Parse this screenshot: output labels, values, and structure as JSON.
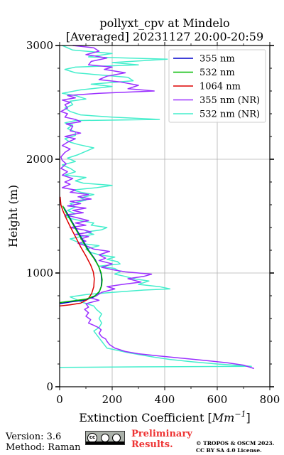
{
  "chart_data": {
    "type": "line",
    "title": "pollyxt_cpv at Mindelo",
    "subtitle": "[Averaged] 20231127 20:00-20:59",
    "xlabel": "Extinction Coefficient [",
    "xlabel_unit": "Mm",
    "xlabel_exp": "−1",
    "xlabel_close": "]",
    "ylabel": "Height (m)",
    "xlim": [
      0,
      800
    ],
    "ylim": [
      0,
      3000
    ],
    "x_ticks": [
      0,
      200,
      400,
      600,
      800
    ],
    "y_ticks": [
      0,
      1000,
      2000,
      3000
    ],
    "x_tick_labels": [
      "0",
      "200",
      "400",
      "600",
      "800"
    ],
    "y_tick_labels": [
      "0",
      "1000",
      "2000",
      "3000"
    ],
    "grid": true,
    "legend_position": "top-right",
    "series": [
      {
        "name": "355 nm",
        "color": "#0000cc",
        "points": [
          [
            0,
            730
          ],
          [
            40,
            745
          ],
          [
            90,
            760
          ],
          [
            130,
            790
          ],
          [
            150,
            830
          ],
          [
            158,
            880
          ],
          [
            160,
            930
          ],
          [
            158,
            990
          ],
          [
            150,
            1050
          ],
          [
            135,
            1120
          ],
          [
            110,
            1200
          ],
          [
            85,
            1300
          ],
          [
            60,
            1400
          ],
          [
            40,
            1480
          ],
          [
            25,
            1540
          ],
          [
            15,
            1580
          ]
        ]
      },
      {
        "name": "532 nm",
        "color": "#00bb00",
        "points": [
          [
            0,
            740
          ],
          [
            50,
            755
          ],
          [
            100,
            770
          ],
          [
            135,
            800
          ],
          [
            152,
            840
          ],
          [
            160,
            890
          ],
          [
            162,
            940
          ],
          [
            158,
            1000
          ],
          [
            148,
            1060
          ],
          [
            130,
            1130
          ],
          [
            105,
            1210
          ],
          [
            80,
            1310
          ],
          [
            55,
            1410
          ],
          [
            35,
            1490
          ],
          [
            20,
            1550
          ],
          [
            12,
            1590
          ]
        ]
      },
      {
        "name": "1064 nm",
        "color": "#dd0000",
        "points": [
          [
            0,
            710
          ],
          [
            40,
            720
          ],
          [
            80,
            735
          ],
          [
            108,
            770
          ],
          [
            122,
            820
          ],
          [
            130,
            880
          ],
          [
            132,
            950
          ],
          [
            128,
            1010
          ],
          [
            118,
            1070
          ],
          [
            100,
            1150
          ],
          [
            80,
            1230
          ],
          [
            60,
            1320
          ],
          [
            42,
            1400
          ],
          [
            25,
            1480
          ],
          [
            12,
            1550
          ],
          [
            5,
            1600
          ],
          [
            2,
            1670
          ]
        ]
      },
      {
        "name": "355 nm (NR)",
        "color": "#9b30ff",
        "points": [
          [
            740,
            160
          ],
          [
            700,
            190
          ],
          [
            640,
            210
          ],
          [
            560,
            230
          ],
          [
            470,
            250
          ],
          [
            380,
            270
          ],
          [
            300,
            290
          ],
          [
            250,
            310
          ],
          [
            210,
            340
          ],
          [
            190,
            370
          ],
          [
            180,
            400
          ],
          [
            175,
            420
          ],
          [
            160,
            440
          ],
          [
            150,
            470
          ],
          [
            158,
            500
          ],
          [
            148,
            520
          ],
          [
            130,
            540
          ],
          [
            110,
            560
          ],
          [
            118,
            590
          ],
          [
            100,
            620
          ],
          [
            110,
            650
          ],
          [
            95,
            680
          ],
          [
            110,
            700
          ],
          [
            100,
            730
          ],
          [
            150,
            760
          ],
          [
            120,
            780
          ],
          [
            140,
            800
          ],
          [
            160,
            830
          ],
          [
            210,
            860
          ],
          [
            180,
            880
          ],
          [
            240,
            900
          ],
          [
            310,
            920
          ],
          [
            260,
            950
          ],
          [
            320,
            970
          ],
          [
            350,
            990
          ],
          [
            250,
            1010
          ],
          [
            200,
            1030
          ],
          [
            160,
            1050
          ],
          [
            200,
            1080
          ],
          [
            150,
            1110
          ],
          [
            175,
            1130
          ],
          [
            150,
            1160
          ],
          [
            190,
            1190
          ],
          [
            130,
            1210
          ],
          [
            100,
            1240
          ],
          [
            70,
            1260
          ],
          [
            100,
            1280
          ],
          [
            80,
            1300
          ],
          [
            110,
            1320
          ],
          [
            60,
            1340
          ],
          [
            120,
            1360
          ],
          [
            90,
            1380
          ],
          [
            40,
            1400
          ],
          [
            100,
            1420
          ],
          [
            60,
            1440
          ],
          [
            110,
            1460
          ],
          [
            60,
            1490
          ],
          [
            20,
            1510
          ],
          [
            90,
            1530
          ],
          [
            50,
            1550
          ],
          [
            100,
            1570
          ],
          [
            30,
            1590
          ],
          [
            80,
            1610
          ],
          [
            40,
            1630
          ],
          [
            120,
            1650
          ],
          [
            70,
            1670
          ],
          [
            110,
            1690
          ],
          [
            40,
            1710
          ],
          [
            60,
            1730
          ],
          [
            10,
            1750
          ],
          [
            40,
            1780
          ],
          [
            20,
            1800
          ],
          [
            50,
            1830
          ],
          [
            10,
            1860
          ],
          [
            30,
            1890
          ],
          [
            5,
            1920
          ],
          [
            25,
            1960
          ],
          [
            10,
            1990
          ],
          [
            5,
            2020
          ],
          [
            20,
            2060
          ],
          [
            40,
            2090
          ],
          [
            10,
            2120
          ],
          [
            30,
            2150
          ],
          [
            60,
            2180
          ],
          [
            20,
            2200
          ],
          [
            80,
            2230
          ],
          [
            40,
            2250
          ],
          [
            50,
            2290
          ],
          [
            25,
            2310
          ],
          [
            80,
            2330
          ],
          [
            60,
            2350
          ],
          [
            20,
            2370
          ],
          [
            30,
            2400
          ],
          [
            5,
            2420
          ],
          [
            30,
            2450
          ],
          [
            20,
            2480
          ],
          [
            40,
            2500
          ],
          [
            10,
            2520
          ],
          [
            60,
            2540
          ],
          [
            30,
            2560
          ],
          [
            150,
            2580
          ],
          [
            360,
            2600
          ],
          [
            260,
            2620
          ],
          [
            300,
            2650
          ],
          [
            230,
            2680
          ],
          [
            150,
            2700
          ],
          [
            180,
            2730
          ],
          [
            250,
            2760
          ],
          [
            170,
            2790
          ],
          [
            200,
            2810
          ],
          [
            110,
            2830
          ],
          [
            120,
            2860
          ],
          [
            180,
            2890
          ],
          [
            100,
            2920
          ],
          [
            150,
            2950
          ],
          [
            130,
            2980
          ],
          [
            50,
            3000
          ]
        ]
      },
      {
        "name": "532 nm (NR)",
        "color": "#44eecc",
        "points": [
          [
            0,
            170
          ],
          [
            300,
            175
          ],
          [
            730,
            180
          ],
          [
            600,
            200
          ],
          [
            500,
            220
          ],
          [
            420,
            240
          ],
          [
            360,
            260
          ],
          [
            310,
            280
          ],
          [
            260,
            300
          ],
          [
            220,
            320
          ],
          [
            180,
            340
          ],
          [
            170,
            370
          ],
          [
            160,
            400
          ],
          [
            150,
            430
          ],
          [
            140,
            460
          ],
          [
            130,
            490
          ],
          [
            150,
            520
          ],
          [
            160,
            560
          ],
          [
            150,
            600
          ],
          [
            160,
            640
          ],
          [
            140,
            680
          ],
          [
            130,
            710
          ],
          [
            90,
            740
          ],
          [
            60,
            770
          ],
          [
            40,
            790
          ],
          [
            100,
            810
          ],
          [
            200,
            830
          ],
          [
            320,
            850
          ],
          [
            420,
            860
          ],
          [
            380,
            880
          ],
          [
            300,
            900
          ],
          [
            340,
            930
          ],
          [
            280,
            950
          ],
          [
            250,
            970
          ],
          [
            210,
            990
          ],
          [
            230,
            1010
          ],
          [
            210,
            1040
          ],
          [
            150,
            1060
          ],
          [
            230,
            1080
          ],
          [
            220,
            1100
          ],
          [
            180,
            1120
          ],
          [
            210,
            1140
          ],
          [
            150,
            1160
          ],
          [
            120,
            1180
          ],
          [
            100,
            1210
          ],
          [
            150,
            1240
          ],
          [
            80,
            1260
          ],
          [
            60,
            1280
          ],
          [
            40,
            1300
          ],
          [
            80,
            1320
          ],
          [
            130,
            1340
          ],
          [
            100,
            1360
          ],
          [
            160,
            1380
          ],
          [
            180,
            1400
          ],
          [
            120,
            1420
          ],
          [
            130,
            1440
          ],
          [
            80,
            1460
          ],
          [
            40,
            1480
          ],
          [
            20,
            1500
          ],
          [
            60,
            1520
          ],
          [
            30,
            1550
          ],
          [
            60,
            1580
          ],
          [
            40,
            1610
          ],
          [
            100,
            1640
          ],
          [
            80,
            1660
          ],
          [
            130,
            1690
          ],
          [
            80,
            1710
          ],
          [
            50,
            1730
          ],
          [
            140,
            1750
          ],
          [
            200,
            1770
          ],
          [
            90,
            1790
          ],
          [
            60,
            1810
          ],
          [
            100,
            1840
          ],
          [
            20,
            1860
          ],
          [
            60,
            1890
          ],
          [
            40,
            1920
          ],
          [
            10,
            1950
          ],
          [
            60,
            1980
          ],
          [
            30,
            2010
          ],
          [
            70,
            2040
          ],
          [
            100,
            2070
          ],
          [
            130,
            2100
          ],
          [
            70,
            2130
          ],
          [
            40,
            2150
          ],
          [
            20,
            2180
          ],
          [
            60,
            2210
          ],
          [
            60,
            2240
          ],
          [
            30,
            2270
          ],
          [
            50,
            2300
          ],
          [
            20,
            2320
          ],
          [
            60,
            2340
          ],
          [
            380,
            2350
          ],
          [
            200,
            2370
          ],
          [
            80,
            2390
          ],
          [
            40,
            2420
          ],
          [
            20,
            2450
          ],
          [
            50,
            2480
          ],
          [
            40,
            2510
          ],
          [
            100,
            2530
          ],
          [
            60,
            2560
          ],
          [
            10,
            2580
          ],
          [
            80,
            2610
          ],
          [
            200,
            2640
          ],
          [
            120,
            2660
          ],
          [
            280,
            2690
          ],
          [
            260,
            2720
          ],
          [
            160,
            2740
          ],
          [
            60,
            2760
          ],
          [
            20,
            2790
          ],
          [
            60,
            2810
          ],
          [
            300,
            2830
          ],
          [
            200,
            2850
          ],
          [
            410,
            2880
          ],
          [
            110,
            2900
          ],
          [
            200,
            2930
          ],
          [
            50,
            2960
          ],
          [
            10,
            3000
          ]
        ]
      }
    ]
  },
  "footer": {
    "version": "Version: 3.6",
    "method": "Method: Raman",
    "license_badge": "cc by sa",
    "prelim_line1": "Preliminary",
    "prelim_line2": "Results.",
    "copyright_line1": "© TROPOS & OSCM 2023.",
    "copyright_line2": "CC BY SA 4.0 License."
  }
}
